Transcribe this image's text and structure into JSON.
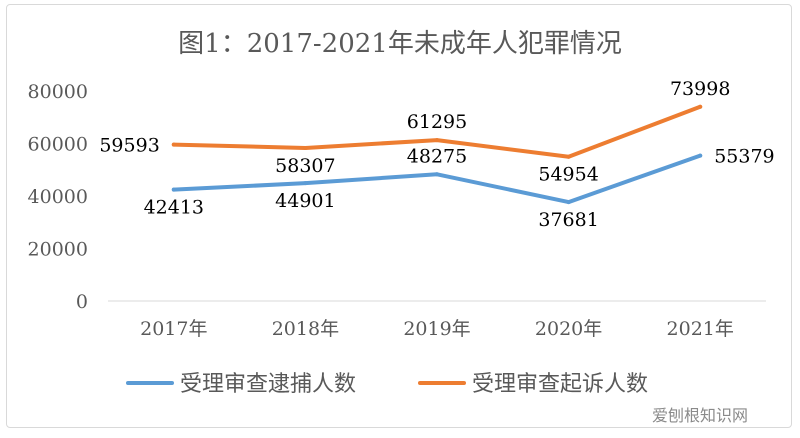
{
  "chart_data": {
    "type": "line",
    "title": "图1：2017-2021年未成年人犯罪情况",
    "categories": [
      "2017年",
      "2018年",
      "2019年",
      "2020年",
      "2021年"
    ],
    "ylim": [
      0,
      80000
    ],
    "yticks": [
      0,
      20000,
      40000,
      60000,
      80000
    ],
    "grid": false,
    "legend_position": "bottom",
    "series": [
      {
        "name": "受理审查逮捕人数",
        "color": "#5b9bd5",
        "values": [
          42413,
          44901,
          48275,
          37681,
          55379
        ],
        "label_pos": [
          "below",
          "below",
          "above",
          "below",
          "right"
        ]
      },
      {
        "name": "受理审查起诉人数",
        "color": "#ed7d31",
        "values": [
          59593,
          58307,
          61295,
          54954,
          73998
        ],
        "label_pos": [
          "left",
          "below",
          "above",
          "below",
          "above"
        ]
      }
    ]
  },
  "watermark": "爱刨根知识网"
}
